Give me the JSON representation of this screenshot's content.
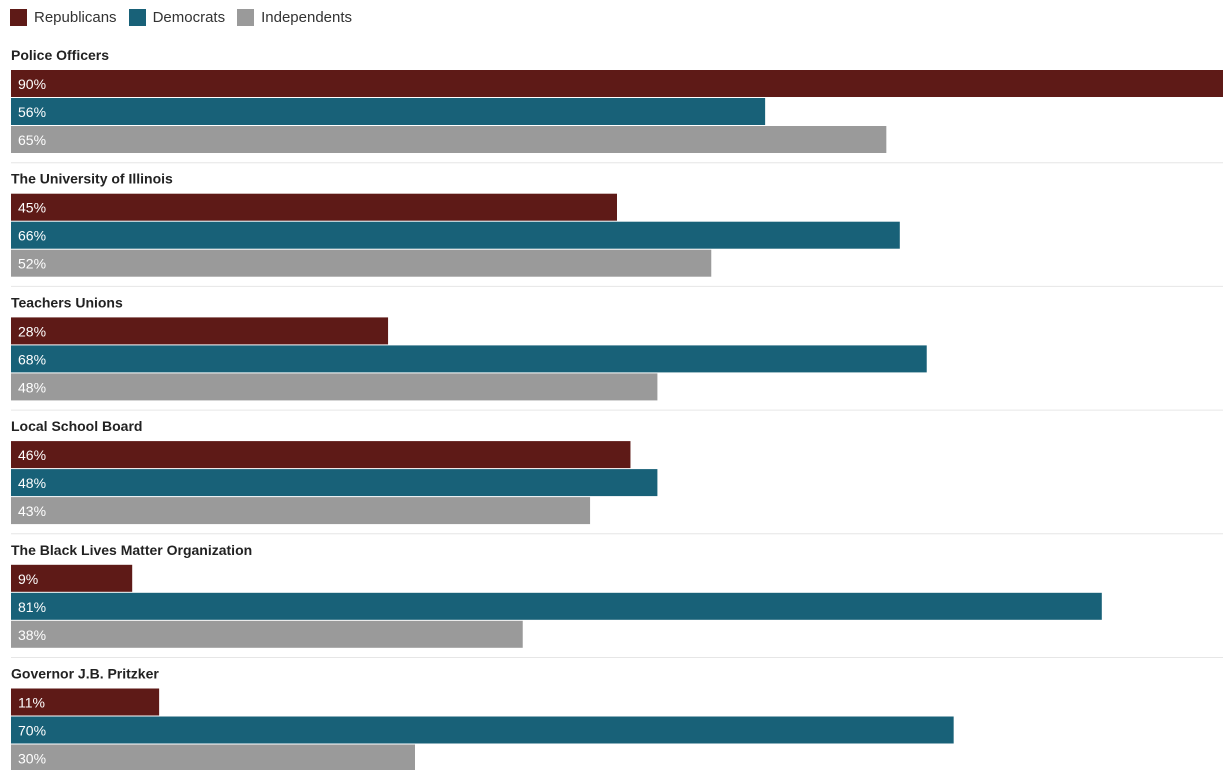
{
  "chart_data": {
    "type": "bar",
    "orientation": "horizontal",
    "value_format": "percent",
    "xlim": [
      0,
      90
    ],
    "grid": false,
    "legend_position": "top-left",
    "categories": [
      "Police Officers",
      "The University of Illinois",
      "Teachers Unions",
      "Local School Board",
      "The Black Lives Matter Organization",
      "Governor J.B. Pritzker"
    ],
    "series": [
      {
        "name": "Republicans",
        "color": "#5e1a17",
        "values": [
          90,
          45,
          28,
          46,
          9,
          11
        ]
      },
      {
        "name": "Democrats",
        "color": "#186178",
        "values": [
          56,
          66,
          68,
          48,
          81,
          70
        ]
      },
      {
        "name": "Independents",
        "color": "#9a9a9a",
        "values": [
          65,
          52,
          48,
          43,
          38,
          30
        ]
      }
    ]
  }
}
